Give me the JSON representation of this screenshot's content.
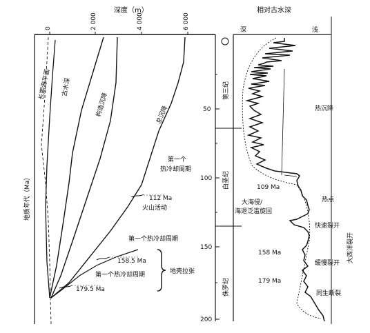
{
  "figure": {
    "depth_axis": {
      "title": "深度（m）",
      "ticks": [
        "0",
        "2 000",
        "4 000",
        "6 000"
      ]
    },
    "age_axis": {
      "title": "地质年代（Ma）",
      "ticks": [
        "50",
        "100",
        "150",
        "200"
      ]
    },
    "paleo_depth": {
      "title": "相对古水深",
      "deep_label": "深",
      "shallow_label": "浅"
    },
    "periods": [
      "第三纪",
      "白垩纪",
      "侏罗纪"
    ],
    "curve_labels": {
      "sea_level": "长期海平面",
      "paleo_water_depth": "古水深",
      "tectonic_subsidence": "构造沉降",
      "total_subsidence": "总沉降"
    },
    "annotations": {
      "first_thermal_cycle_1": "第一个",
      "first_thermal_cycle_2": "热冷却周期",
      "volcanic_age": "112 Ma",
      "volcanic": "火山活动",
      "first_thermal_cycle_mid": "第一个热冷却周期",
      "age_158_5": "158.5 Ma",
      "first_thermal_cycle_low": "第一个热冷却周期",
      "crustal_extension": "地壳拉张",
      "age_179_5": "179.5 Ma"
    },
    "right_annotations": {
      "thermal_subsidence": "热沉降",
      "age_109": "109 Ma",
      "transgression_1": "大海侵/",
      "transgression_2": "海退泛滥旋回",
      "hotspot": "热点",
      "fast_rifting": "快速裂开",
      "age_158": "158 Ma",
      "slow_rifting": "缓慢裂开",
      "age_179": "179 Ma",
      "syn_rift": "同生断裂",
      "atlantic_rifting": "大西洋裂开"
    }
  }
}
